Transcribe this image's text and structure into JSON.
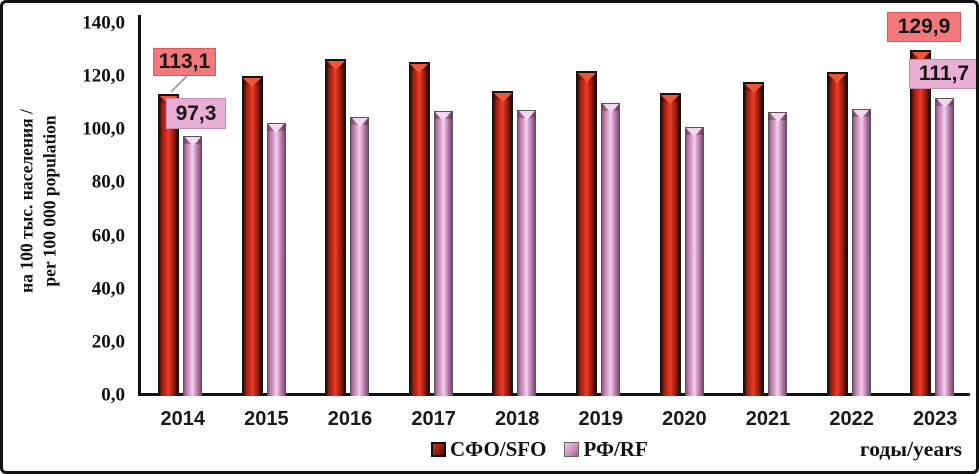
{
  "y_axis": {
    "title_line1": "на 100 тыс. населения /",
    "title_line2": "per 100 000 population",
    "ticks": [
      "140,0",
      "120,0",
      "100,0",
      "80,0",
      "60,0",
      "40,0",
      "20,0",
      "0,0"
    ]
  },
  "x_axis": {
    "title": "годы/years",
    "categories": [
      "2014",
      "2015",
      "2016",
      "2017",
      "2018",
      "2019",
      "2020",
      "2021",
      "2022",
      "2023"
    ]
  },
  "legend": {
    "items": [
      {
        "name": "sfo",
        "label": "СФО/SFO",
        "color": "#9c2012"
      },
      {
        "name": "rf",
        "label": "РФ/RF",
        "color": "#d8a2cb"
      }
    ]
  },
  "callouts": [
    {
      "text": "113,1",
      "series": "sfo",
      "year": "2014",
      "style": "salmon"
    },
    {
      "text": "97,3",
      "series": "rf",
      "year": "2014",
      "style": "pink"
    },
    {
      "text": "129,9",
      "series": "sfo",
      "year": "2023",
      "style": "salmon"
    },
    {
      "text": "111,7",
      "series": "rf",
      "year": "2023",
      "style": "pink"
    }
  ],
  "colors": {
    "sfo_bar": "#d62c1a",
    "rf_bar": "#d8a2cb",
    "callout_salmon": "#f1797c",
    "callout_pink": "#e9aed3",
    "axis": "#111111"
  },
  "chart_data": {
    "type": "bar",
    "categories": [
      "2014",
      "2015",
      "2016",
      "2017",
      "2018",
      "2019",
      "2020",
      "2021",
      "2022",
      "2023"
    ],
    "series": [
      {
        "name": "СФО/SFO",
        "values": [
          113.1,
          120.2,
          126.3,
          125.2,
          114.5,
          121.8,
          113.8,
          117.8,
          121.4,
          129.9
        ]
      },
      {
        "name": "РФ/RF",
        "values": [
          97.3,
          102.3,
          104.8,
          106.7,
          107.3,
          110.0,
          101.0,
          106.4,
          107.5,
          111.7
        ]
      }
    ],
    "data_labels": [
      {
        "series": "СФО/SFO",
        "category": "2014",
        "label": "113,1"
      },
      {
        "series": "РФ/RF",
        "category": "2014",
        "label": "97,3"
      },
      {
        "series": "СФО/SFO",
        "category": "2023",
        "label": "129,9"
      },
      {
        "series": "РФ/RF",
        "category": "2023",
        "label": "111,7"
      }
    ],
    "title": "",
    "xlabel": "годы/years",
    "ylabel": "на 100 тыс. населения / per 100 000 population",
    "ylim": [
      0,
      140
    ],
    "ytick_step": 20,
    "grid": false,
    "legend_position": "bottom-center"
  }
}
